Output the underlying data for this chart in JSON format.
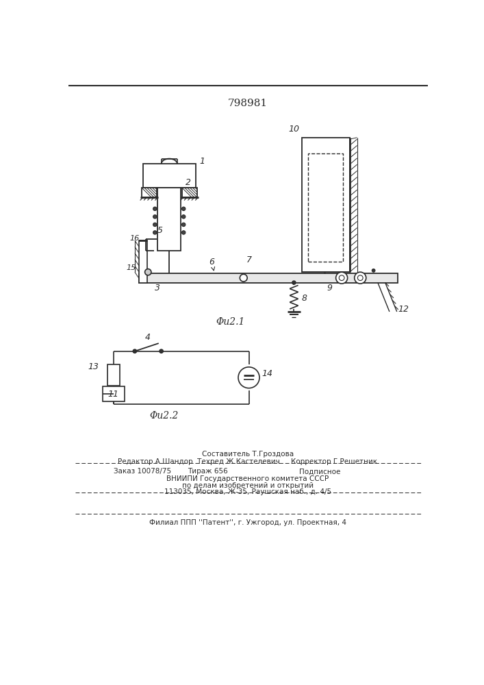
{
  "title": "798981",
  "fig1_label": "Φu2.1",
  "fig2_label": "Φu2.2",
  "bg_color": "#ffffff",
  "line_color": "#2a2a2a",
  "text_color": "#2a2a2a",
  "footer_line1": "Составитель Т.Гроздова",
  "footer_line2": "Редактор А.Шандор  Техред Ж.Кастелевич     Корректор Г.Решетник",
  "footer_line3": "Заказ 10078/75    Тираж 656         Подписное",
  "footer_line4": "ВНИИПИ Государственного комитета СССР",
  "footer_line5": "по делам изобретений и открытий",
  "footer_line6": "113035, Москва, Ж-35, Раушская наб., д. 4/5",
  "footer_line7": "Филиал ППП ''Патент'', г. Ужгород, ул. Проектная, 4"
}
